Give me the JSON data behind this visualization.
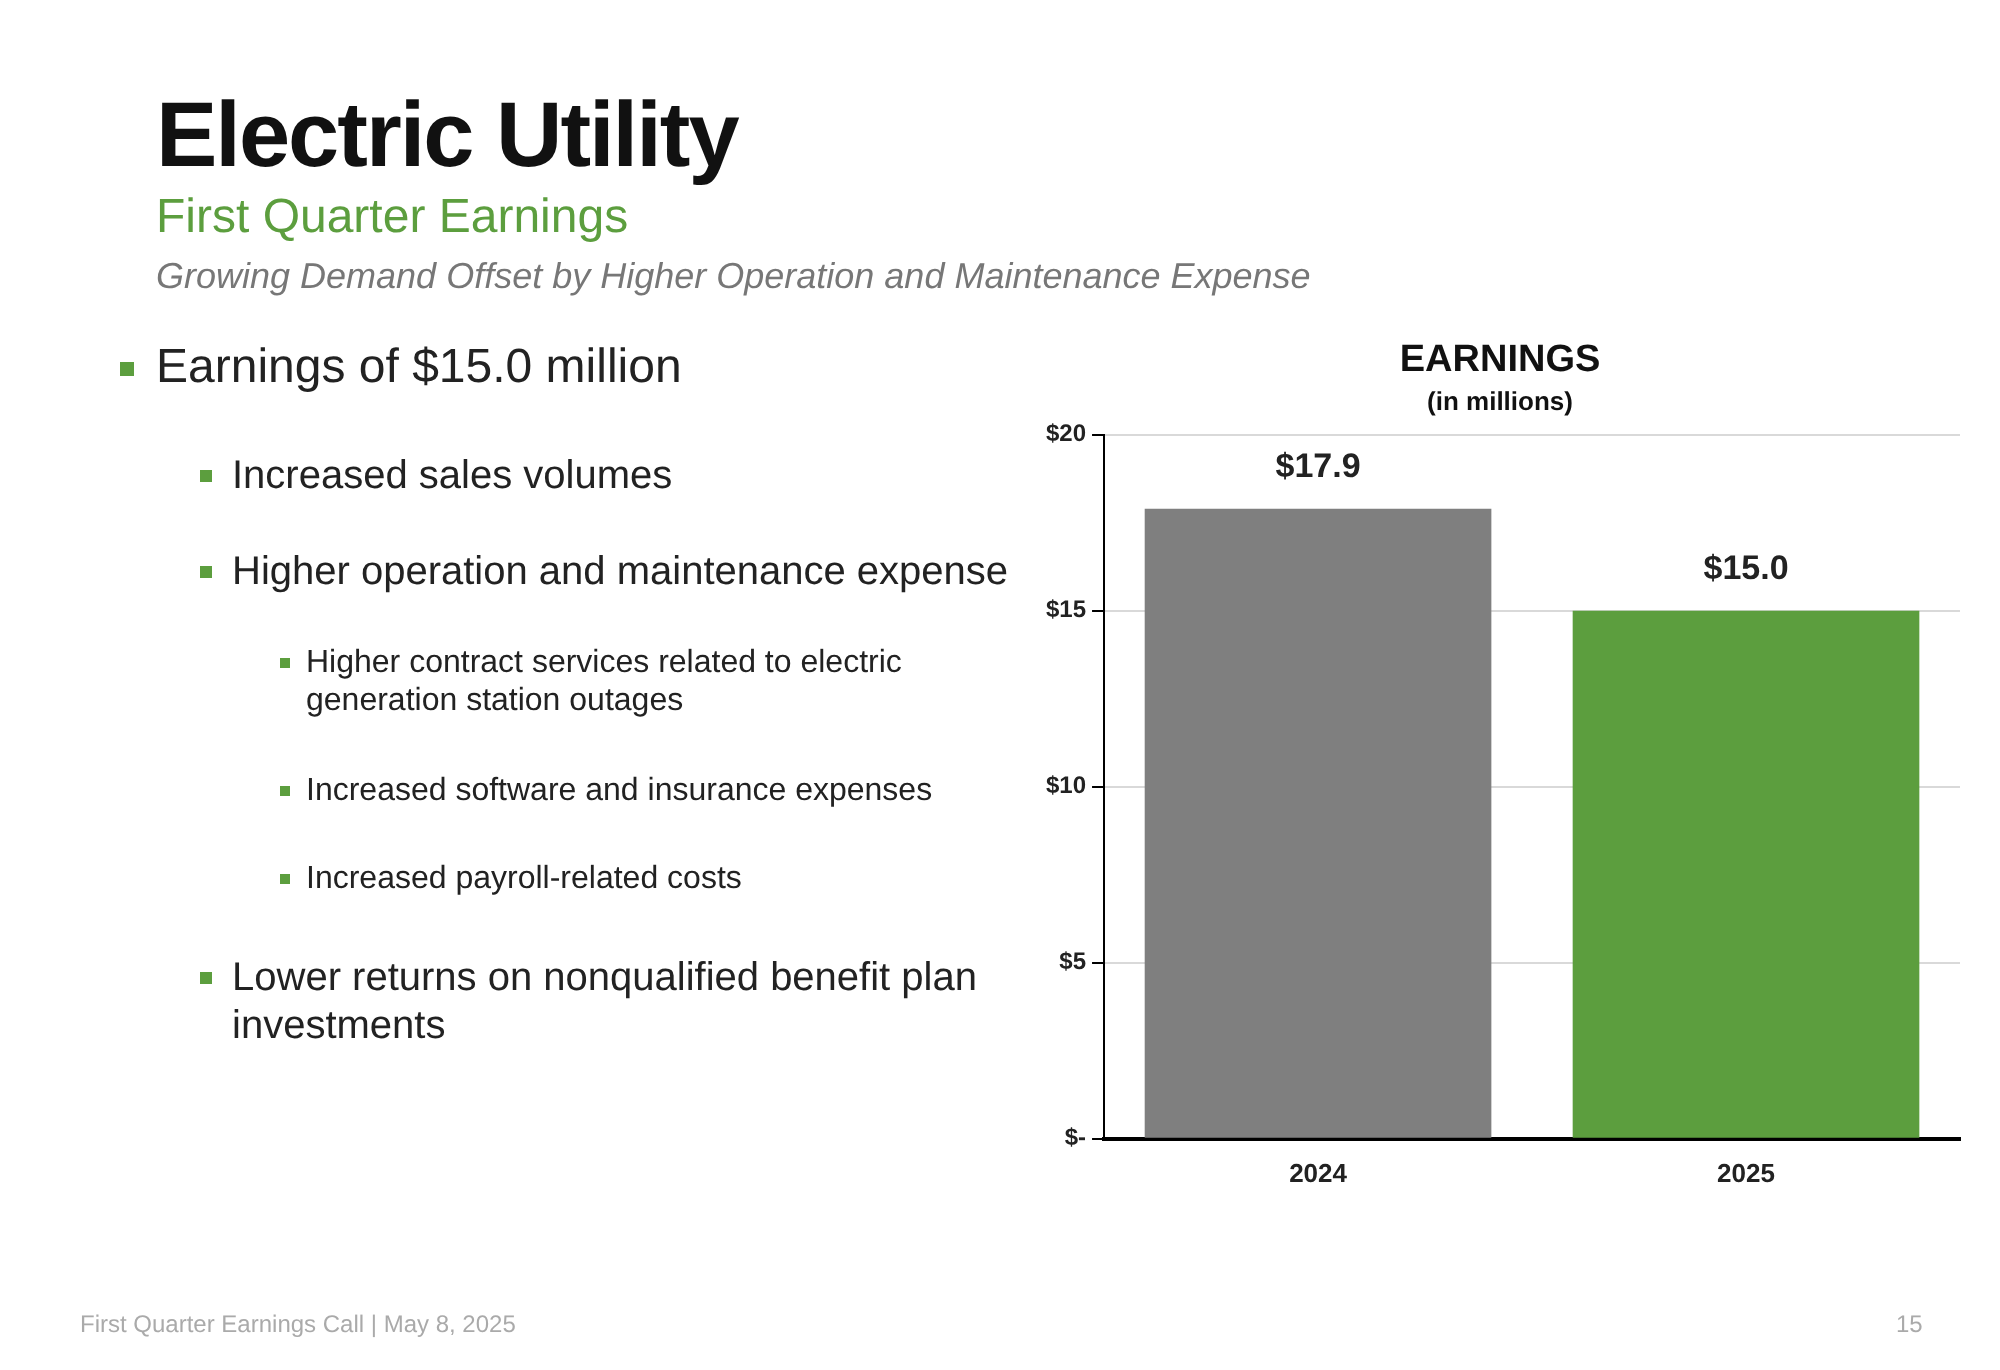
{
  "chart_data": {
    "type": "bar",
    "title": "EARNINGS",
    "subtitle": "(in millions)",
    "categories": [
      "2024",
      "2025"
    ],
    "values": [
      17.9,
      15.0
    ],
    "colors": [
      "#7f7f7f",
      "#5c9e3e"
    ],
    "value_labels": [
      "$17.9",
      "$15.0"
    ],
    "ylim": [
      0,
      20
    ],
    "yticks": [
      {
        "value": 0,
        "label": "$-"
      },
      {
        "value": 5,
        "label": "$5"
      },
      {
        "value": 10,
        "label": "$10"
      },
      {
        "value": 15,
        "label": "$15"
      },
      {
        "value": 20,
        "label": "$20"
      }
    ],
    "grid": "y",
    "legend": false,
    "annotations": [
      "Electric Utility",
      "First Quarter Earnings",
      "Growing Demand Offset by Higher Operation and Maintenance Expense",
      "Earnings of $15.0 million",
      "Increased sales volumes",
      "Higher operation and maintenance expense",
      "Higher contract services related to electric generation station outages",
      "Increased software and insurance expenses",
      "Increased payroll-related costs",
      "Lower returns on nonqualified benefit plan investments",
      "First Quarter Earnings Call | May 8, 2025",
      "15"
    ]
  }
}
